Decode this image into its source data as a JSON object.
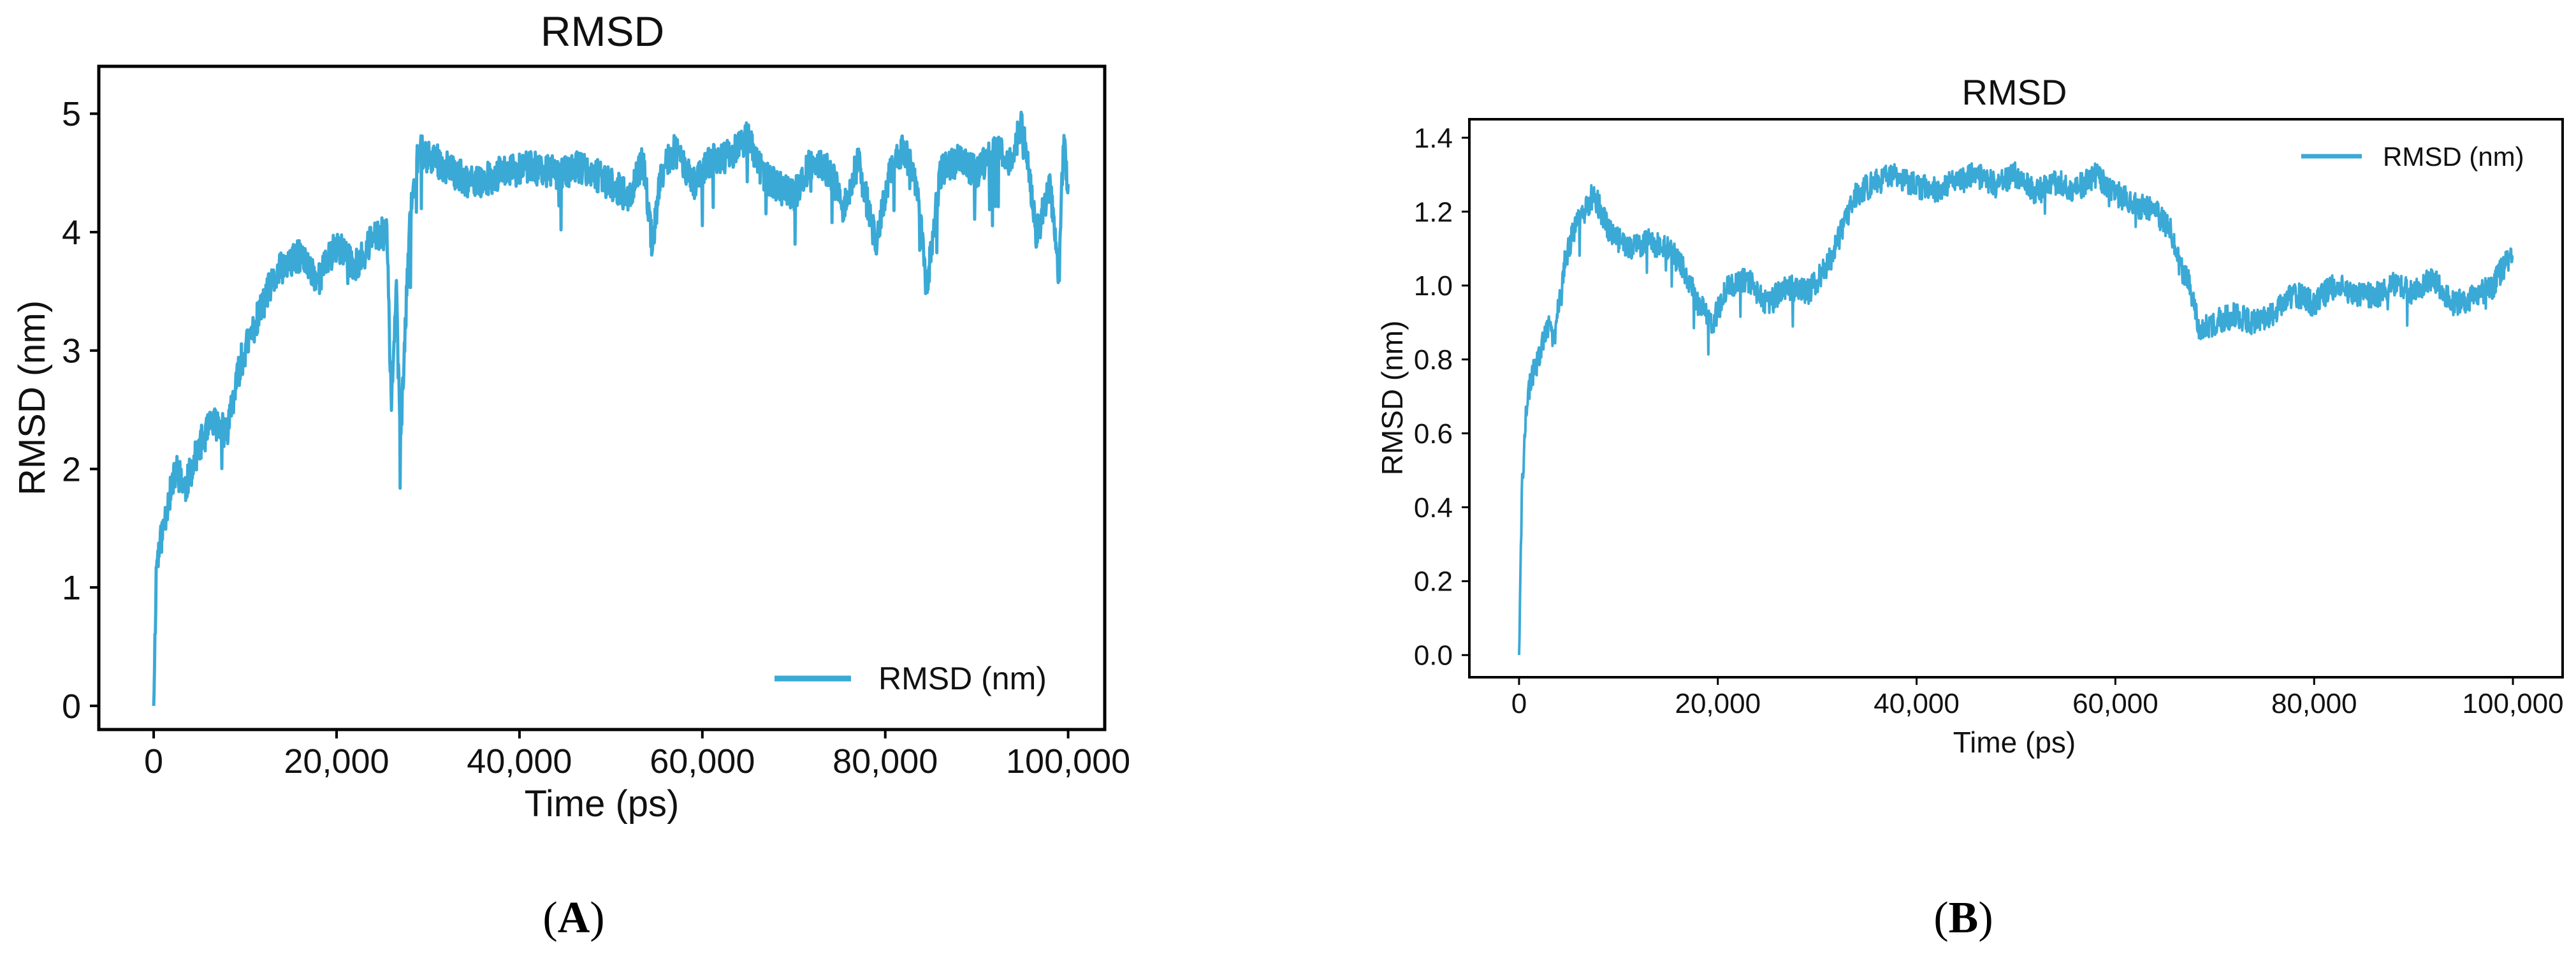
{
  "panels": [
    {
      "label_open": "(",
      "label_letter": "A",
      "label_close": ")"
    },
    {
      "label_open": "(",
      "label_letter": "B",
      "label_close": ")"
    }
  ],
  "colors": {
    "series": "#3aa9d6",
    "axis": "#000000",
    "text": "#111111"
  },
  "chart_data": [
    {
      "type": "line",
      "title": "RMSD",
      "xlabel": "Time (ps)",
      "ylabel": "RMSD (nm)",
      "xlim": [
        -6000,
        104000
      ],
      "ylim": [
        -0.2,
        5.4
      ],
      "xticks": [
        0,
        20000,
        40000,
        60000,
        80000,
        100000
      ],
      "xtick_labels": [
        "0",
        "20,000",
        "40,000",
        "60,000",
        "80,000",
        "100,000"
      ],
      "yticks": [
        0,
        1,
        2,
        3,
        4,
        5
      ],
      "ytick_labels": [
        "0",
        "1",
        "2",
        "3",
        "4",
        "5"
      ],
      "grid": false,
      "legend": {
        "position": "lower-right",
        "entries": [
          "RMSD (nm)"
        ]
      },
      "series": [
        {
          "name": "RMSD (nm)",
          "x": [
            0,
            300,
            800,
            1500,
            2500,
            3500,
            5000,
            6500,
            8000,
            9500,
            11000,
            12500,
            14000,
            16000,
            18000,
            20000,
            22000,
            24000,
            25500,
            26000,
            26500,
            27000,
            28000,
            29000,
            31000,
            33000,
            35000,
            38000,
            41000,
            44000,
            47000,
            50000,
            52000,
            53500,
            54500,
            55500,
            57000,
            59000,
            61000,
            63000,
            65000,
            66500,
            68000,
            70000,
            72000,
            74000,
            75500,
            77000,
            79000,
            80500,
            82000,
            83500,
            84500,
            86000,
            88000,
            90000,
            92000,
            93500,
            95000,
            96500,
            98000,
            99000,
            99500,
            100000
          ],
          "y": [
            0.0,
            1.2,
            1.4,
            1.7,
            2.0,
            1.85,
            2.2,
            2.4,
            2.3,
            2.9,
            3.2,
            3.5,
            3.7,
            3.8,
            3.6,
            3.9,
            3.7,
            3.95,
            4.0,
            2.5,
            3.6,
            2.2,
            4.1,
            4.7,
            4.6,
            4.5,
            4.4,
            4.5,
            4.55,
            4.5,
            4.55,
            4.4,
            4.3,
            4.6,
            3.9,
            4.5,
            4.7,
            4.4,
            4.6,
            4.65,
            4.8,
            4.5,
            4.4,
            4.3,
            4.6,
            4.5,
            4.2,
            4.6,
            3.9,
            4.5,
            4.7,
            4.4,
            3.5,
            4.5,
            4.6,
            4.5,
            4.7,
            4.6,
            4.9,
            4.0,
            4.4,
            3.6,
            4.8,
            4.3
          ]
        }
      ]
    },
    {
      "type": "line",
      "title": "RMSD",
      "xlabel": "Time (ps)",
      "ylabel": "RMSD (nm)",
      "xlim": [
        -5000,
        105000
      ],
      "ylim": [
        -0.06,
        1.45
      ],
      "xticks": [
        0,
        20000,
        40000,
        60000,
        80000,
        100000
      ],
      "xtick_labels": [
        "0",
        "20,000",
        "40,000",
        "60,000",
        "80,000",
        "100,000"
      ],
      "yticks": [
        0.0,
        0.2,
        0.4,
        0.6,
        0.8,
        1.0,
        1.2,
        1.4
      ],
      "ytick_labels": [
        "0.0",
        "0.2",
        "0.4",
        "0.6",
        "0.8",
        "1.0",
        "1.2",
        "1.4"
      ],
      "grid": false,
      "legend": {
        "position": "top-right",
        "entries": [
          "RMSD (nm)"
        ]
      },
      "series": [
        {
          "name": "RMSD (nm)",
          "x": [
            0,
            300,
            700,
            1200,
            2000,
            2800,
            3500,
            4500,
            5500,
            6500,
            7500,
            9000,
            11000,
            13000,
            15000,
            16500,
            18000,
            19500,
            21000,
            23000,
            25000,
            27000,
            29000,
            31000,
            32500,
            34000,
            36000,
            38000,
            40000,
            42000,
            44000,
            46000,
            48000,
            50000,
            52000,
            54000,
            56000,
            58000,
            60000,
            62000,
            64000,
            65500,
            66500,
            67500,
            68500,
            70000,
            72000,
            74000,
            76000,
            78000,
            80000,
            82000,
            84000,
            86000,
            88000,
            90000,
            92000,
            94000,
            96000,
            98000,
            99000,
            100000
          ],
          "y": [
            0.0,
            0.45,
            0.65,
            0.75,
            0.8,
            0.9,
            0.85,
            1.05,
            1.15,
            1.2,
            1.25,
            1.15,
            1.1,
            1.12,
            1.1,
            1.05,
            0.95,
            0.9,
            1.0,
            1.02,
            0.95,
            1.0,
            0.98,
            1.05,
            1.15,
            1.25,
            1.28,
            1.3,
            1.27,
            1.26,
            1.28,
            1.3,
            1.27,
            1.3,
            1.25,
            1.28,
            1.26,
            1.3,
            1.25,
            1.22,
            1.2,
            1.15,
            1.05,
            1.0,
            0.88,
            0.9,
            0.92,
            0.9,
            0.93,
            0.98,
            0.95,
            1.0,
            0.98,
            0.97,
            1.0,
            0.98,
            1.02,
            0.95,
            0.97,
            1.0,
            1.05,
            1.08
          ]
        }
      ]
    }
  ]
}
